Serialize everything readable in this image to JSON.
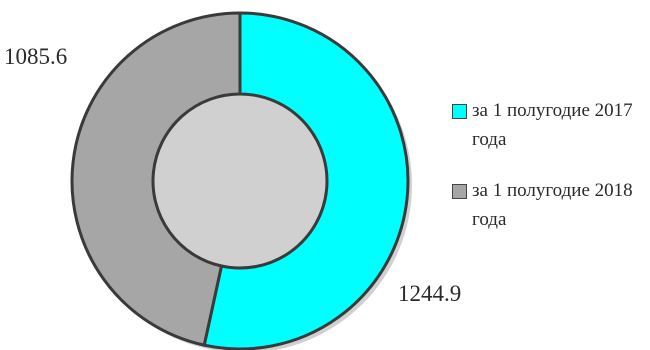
{
  "chart_data": {
    "type": "pie",
    "variant": "donut",
    "title": "",
    "categories": [
      "за 1 полугодие 2017 года",
      "за 1 полугодие 2018 года"
    ],
    "values": [
      1244.9,
      1085.6
    ],
    "value_labels": [
      "1244.9",
      "1085.6"
    ],
    "colors": [
      "#00ffff",
      "#a6a6a6"
    ],
    "legend_position": "right"
  },
  "legend": {
    "items": [
      {
        "label": "за 1 полугодие 2017 года",
        "color": "#00ffff"
      },
      {
        "label": "за 1 полугодие 2018 года",
        "color": "#a6a6a6"
      }
    ]
  }
}
